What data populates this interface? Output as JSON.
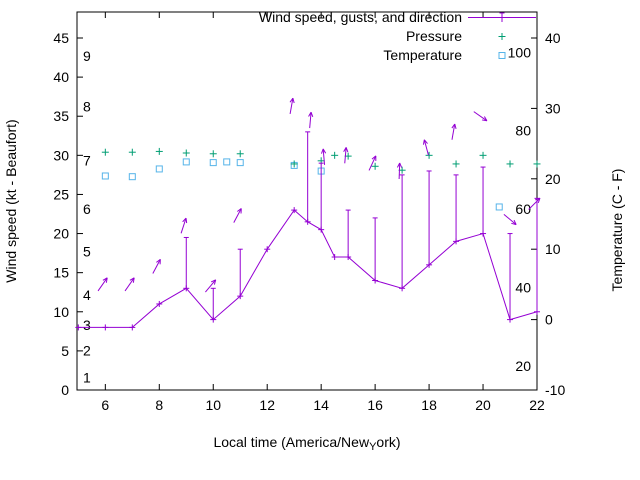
{
  "chart_data": {
    "type": "line",
    "title": "",
    "xlabel_parts": {
      "prefix": "Local time (America/New",
      "sub": "Y",
      "suffix": "ork)"
    },
    "ylabel": "Wind speed (kt - Beaufort)",
    "y2label": "Temperature (C - F)",
    "legend": {
      "position": "top-right-inside",
      "entries": [
        {
          "label": "Wind speed, gusts, and direction",
          "marker": "line-errorbar",
          "color": "#9400d3"
        },
        {
          "label": "Pressure",
          "marker": "plus",
          "color": "#009e73"
        },
        {
          "label": "Temperature",
          "marker": "open-square",
          "color": "#56b4e9"
        }
      ]
    },
    "colors": {
      "wind": "#9400d3",
      "pressure": "#009e73",
      "temperature": "#56b4e9",
      "axis": "#000000",
      "background": "#ffffff"
    },
    "axes": {
      "x": {
        "ticks": [
          6,
          8,
          10,
          12,
          14,
          16,
          18,
          20,
          22
        ],
        "range": [
          4.95,
          22
        ],
        "grid": false
      },
      "y": {
        "ticks": [
          0,
          5,
          10,
          15,
          20,
          25,
          30,
          35,
          40,
          45
        ],
        "range": [
          0,
          48.3
        ],
        "units": "kt"
      },
      "y2": {
        "ticks": [
          -10,
          0,
          10,
          20,
          30,
          40
        ],
        "range": [
          -10,
          43.6
        ],
        "units": "C"
      }
    },
    "beaufort_scale_labels": [
      {
        "label": "1",
        "kt": 1.5
      },
      {
        "label": "2",
        "kt": 4.9
      },
      {
        "label": "3",
        "kt": 8.2
      },
      {
        "label": "4",
        "kt": 12.0
      },
      {
        "label": "5",
        "kt": 17.6
      },
      {
        "label": "6",
        "kt": 23.0
      },
      {
        "label": "7",
        "kt": 29.2
      },
      {
        "label": "8",
        "kt": 36.1
      },
      {
        "label": "9",
        "kt": 42.6
      }
    ],
    "fahrenheit_scale_labels": [
      {
        "label": "20",
        "c": -6.7
      },
      {
        "label": "40",
        "c": 4.4
      },
      {
        "label": "60",
        "c": 15.6
      },
      {
        "label": "80",
        "c": 26.7
      },
      {
        "label": "100",
        "c": 37.8
      }
    ],
    "series": {
      "wind": {
        "units": "kt",
        "hours": [
          5.0,
          6,
          7,
          8,
          9,
          10,
          11,
          12,
          13,
          13.5,
          14,
          14.5,
          15,
          16,
          17,
          18,
          19,
          20,
          21,
          22
        ],
        "speed": [
          8,
          8,
          8,
          11,
          13,
          9,
          12,
          18,
          23,
          21.5,
          20.5,
          17,
          17,
          14,
          13,
          16,
          19,
          20,
          9,
          10
        ],
        "gust": [
          8,
          8,
          8,
          11,
          19.5,
          13,
          18,
          18,
          23,
          33,
          29,
          17,
          23,
          22,
          27.5,
          28,
          27.5,
          28.5,
          20,
          24.5
        ]
      },
      "direction_arrows": [
        {
          "x": 5.9,
          "y": 13.5,
          "angle": 55
        },
        {
          "x": 6.9,
          "y": 13.5,
          "angle": 55
        },
        {
          "x": 7.9,
          "y": 15.8,
          "angle": 62
        },
        {
          "x": 8.9,
          "y": 21.0,
          "angle": 72
        },
        {
          "x": 9.9,
          "y": 13.3,
          "angle": 50
        },
        {
          "x": 10.9,
          "y": 22.3,
          "angle": 62
        },
        {
          "x": 12.9,
          "y": 36.3,
          "angle": 80
        },
        {
          "x": 13.6,
          "y": 34.5,
          "angle": 85
        },
        {
          "x": 14.1,
          "y": 29.8,
          "angle": 95
        },
        {
          "x": 14.9,
          "y": 30.0,
          "angle": 85
        },
        {
          "x": 15.9,
          "y": 29.0,
          "angle": 65
        },
        {
          "x": 16.9,
          "y": 28.0,
          "angle": 88
        },
        {
          "x": 17.9,
          "y": 31.0,
          "angle": 105
        },
        {
          "x": 18.9,
          "y": 33.0,
          "angle": 80
        },
        {
          "x": 19.9,
          "y": 35.0,
          "angle": -35
        },
        {
          "x": 21.0,
          "y": 21.8,
          "angle": -40
        },
        {
          "x": 21.9,
          "y": 23.8,
          "angle": 45
        }
      ],
      "pressure": {
        "plotted_on": "left-axis",
        "hours": [
          6,
          7,
          8,
          9,
          10,
          11,
          13,
          14,
          14.5,
          15,
          16,
          17,
          18,
          19,
          20,
          21,
          22
        ],
        "values": [
          30.4,
          30.4,
          30.5,
          30.3,
          30.2,
          30.2,
          28.9,
          29.3,
          30.0,
          29.9,
          28.6,
          28.1,
          30.0,
          28.9,
          30.0,
          28.9,
          28.9
        ]
      },
      "temperature": {
        "units": "C",
        "hours": [
          6,
          7,
          8,
          9,
          10,
          10.5,
          11,
          13,
          14,
          20.6
        ],
        "values": [
          20.4,
          20.3,
          21.4,
          22.4,
          22.3,
          22.4,
          22.3,
          21.9,
          21.1,
          16.0
        ]
      }
    }
  }
}
